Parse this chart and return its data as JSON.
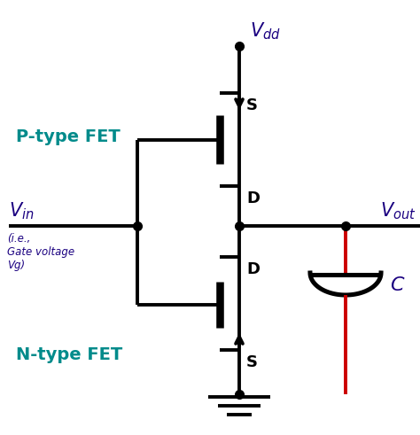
{
  "bg_color": "#ffffff",
  "black": "#000000",
  "blue": "#1a0080",
  "teal": "#008b8b",
  "red": "#cc0000",
  "Vdd_label": "$V_{dd}$",
  "Vin_label": "$V_{in}$",
  "Vout_label": "$V_{out}$",
  "C_label": "$C$",
  "S_label": "S",
  "D_label": "D",
  "ptype_label": "P-type FET",
  "ntype_label": "N-type FET",
  "lw": 2.8
}
